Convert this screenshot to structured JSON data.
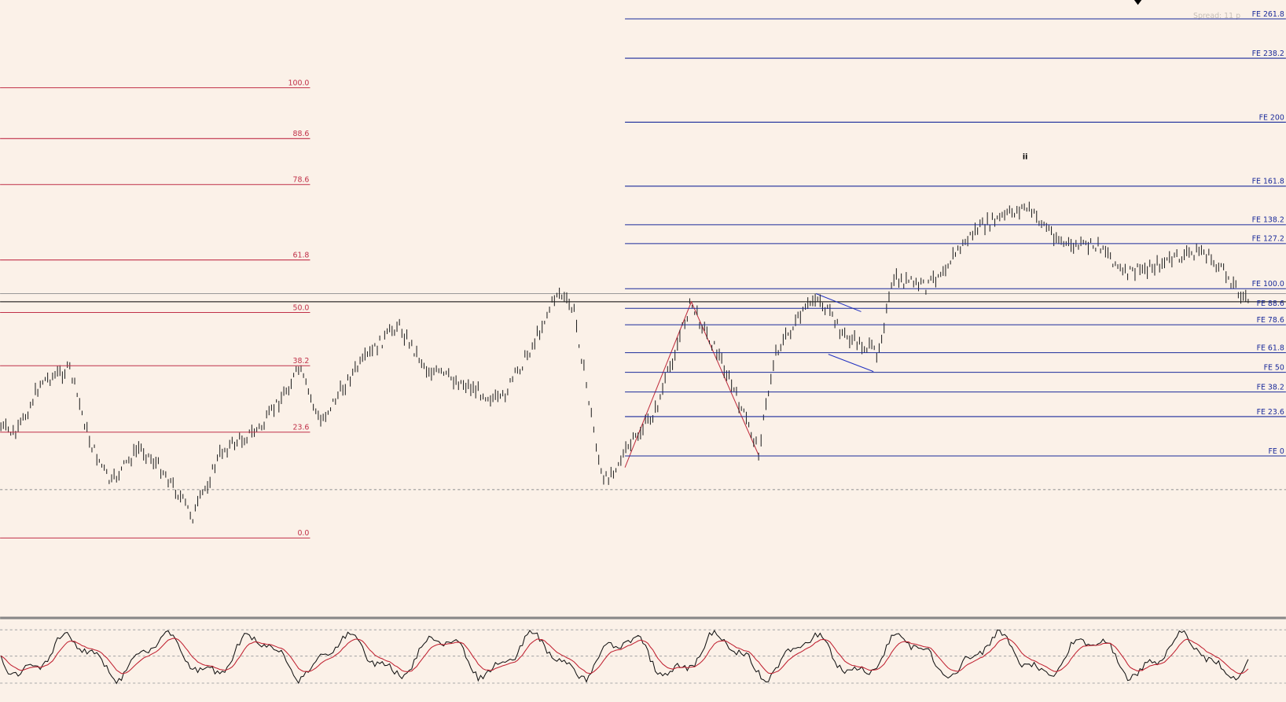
{
  "header": {
    "spread": "Spread: 11 p",
    "wave_label": "ii"
  },
  "retracement": {
    "levels": [
      "100.0",
      "88.6",
      "78.6",
      "61.8",
      "50.0",
      "38.2",
      "23.6",
      "0.0"
    ]
  },
  "expansion": {
    "levels": [
      "FE 261.8",
      "FE 238.2",
      "FE 200",
      "FE 161.8",
      "FE 138.2",
      "FE 127.2",
      "FE 100.0",
      "FE 88.6",
      "FE 78.6",
      "FE 61.8",
      "FE 50",
      "FE 38.2",
      "FE 23.6",
      "FE 0"
    ]
  }
}
